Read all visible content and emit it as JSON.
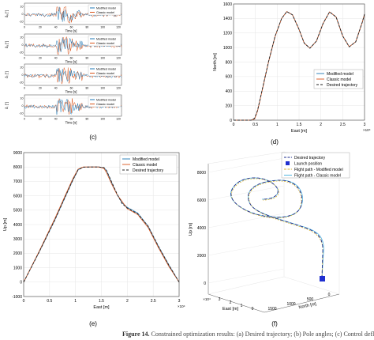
{
  "panel_labels": [
    "(c)",
    "(d)",
    "(e)",
    "(f)"
  ],
  "caption_fragment": {
    "bold": "Figure 14.",
    "rest": " Constrained optimization results: (a) Desired trajectory; (b) Pole angles; (c) Control deflections;"
  },
  "panel_c": {
    "xlabel": "Time [s]",
    "x_ticks": [
      "0",
      "20",
      "40",
      "60",
      "80",
      "100",
      "120"
    ],
    "subplots": [
      {
        "ylabel": "δₑ [°]",
        "y_ticks": [
          "10",
          "0",
          "-10"
        ]
      },
      {
        "ylabel": "δₐ [°]",
        "y_ticks": [
          "20",
          "0",
          "-20"
        ]
      },
      {
        "ylabel": "δᵣ [°]",
        "y_ticks": [
          "20",
          "0",
          "-20"
        ]
      },
      {
        "ylabel": "δₜ [°]",
        "y_ticks": [
          "10",
          "0",
          "-10"
        ]
      }
    ],
    "legend": [
      "Modified model",
      "Classic model"
    ],
    "colors": {
      "modified": "#1f77b4",
      "classic": "#d95319"
    }
  },
  "chart_data": [
    {
      "type": "line",
      "panel": "(d)",
      "xlabel": "East [m]",
      "ylabel": "North [m]",
      "x_scale_label": "×10⁴",
      "xlim": [
        0,
        3
      ],
      "ylim": [
        0,
        1600
      ],
      "x_ticks": [
        0,
        0.5,
        1,
        1.5,
        2,
        2.5,
        3
      ],
      "y_ticks": [
        0,
        200,
        400,
        600,
        800,
        1000,
        1200,
        1400,
        1600
      ],
      "legend": "top-right",
      "grid": true,
      "x": [
        0,
        0.4,
        0.48,
        0.55,
        0.65,
        0.8,
        0.95,
        1.1,
        1.22,
        1.35,
        1.5,
        1.62,
        1.75,
        1.9,
        2.05,
        2.2,
        2.35,
        2.5,
        2.65,
        2.8,
        2.95,
        3.0
      ],
      "series": [
        {
          "name": "Modified model",
          "color": "#1f77b4",
          "values": [
            0,
            0,
            20,
            130,
            400,
            800,
            1150,
            1400,
            1495,
            1450,
            1250,
            1060,
            990,
            1090,
            1330,
            1490,
            1420,
            1160,
            1010,
            1080,
            1350,
            1460
          ]
        },
        {
          "name": "Classic model",
          "color": "#d95319",
          "values": [
            0,
            0,
            15,
            125,
            395,
            800,
            1150,
            1400,
            1495,
            1450,
            1250,
            1060,
            990,
            1090,
            1330,
            1490,
            1420,
            1160,
            1010,
            1080,
            1350,
            1460
          ]
        },
        {
          "name": "Desired trajectory",
          "color": "#222222",
          "dashed": true,
          "values": [
            0,
            0,
            25,
            135,
            405,
            805,
            1155,
            1400,
            1495,
            1450,
            1250,
            1060,
            990,
            1090,
            1330,
            1490,
            1420,
            1160,
            1010,
            1080,
            1350,
            1460
          ]
        }
      ]
    },
    {
      "type": "line",
      "panel": "(e)",
      "xlabel": "East [m]",
      "ylabel": "Up [m]",
      "x_scale_label": "×10⁴",
      "xlim": [
        0,
        3
      ],
      "ylim": [
        -1000,
        9000
      ],
      "x_ticks": [
        0,
        0.5,
        1,
        1.5,
        2,
        2.5,
        3
      ],
      "y_ticks": [
        -1000,
        0,
        1000,
        2000,
        3000,
        4000,
        5000,
        6000,
        7000,
        8000,
        9000
      ],
      "legend": "top-right",
      "grid": true,
      "x": [
        0,
        0.3,
        0.6,
        0.8,
        0.95,
        1.05,
        1.15,
        1.3,
        1.45,
        1.55,
        1.6,
        1.7,
        1.8,
        1.9,
        2.0,
        2.2,
        2.4,
        2.6,
        2.8,
        3.0
      ],
      "series": [
        {
          "name": "Modified model",
          "color": "#1f77b4",
          "values": [
            0,
            2100,
            4300,
            5900,
            7100,
            7800,
            7990,
            8000,
            8000,
            7950,
            7750,
            6900,
            6100,
            5500,
            5200,
            4800,
            3900,
            2500,
            1200,
            0
          ]
        },
        {
          "name": "Classic model",
          "color": "#d95319",
          "values": [
            0,
            2150,
            4400,
            6000,
            7200,
            7850,
            8000,
            8000,
            8000,
            7900,
            7600,
            6800,
            6100,
            5600,
            5100,
            4700,
            3800,
            2400,
            1100,
            0
          ]
        },
        {
          "name": "Desired trajectory",
          "color": "#222222",
          "dashed": true,
          "values": [
            0,
            2100,
            4300,
            5900,
            7100,
            7800,
            7990,
            8000,
            8000,
            7950,
            7750,
            6950,
            6150,
            5450,
            5150,
            4750,
            3900,
            2500,
            1200,
            0
          ]
        }
      ]
    }
  ],
  "panel_f": {
    "zlabel": "Up [m]",
    "xlabel": "East [m]",
    "ylabel": "North [m]",
    "z_ticks": [
      "0",
      "2000",
      "4000",
      "6000",
      "8000"
    ],
    "x_ticks": [
      "3",
      "2",
      "1",
      "0"
    ],
    "x_scale_label": "×10⁴",
    "y_ticks": [
      "1500",
      "1000",
      "500",
      "0"
    ],
    "legend": [
      "Desired trajectory",
      "Launch position",
      "Flight path - Modified model",
      "Flight path - Classic model"
    ],
    "colors": {
      "desired": "#1f2f8f",
      "launch": "#1f2fd0",
      "modified": "#d9b63a",
      "classic": "#55b7e0"
    }
  }
}
